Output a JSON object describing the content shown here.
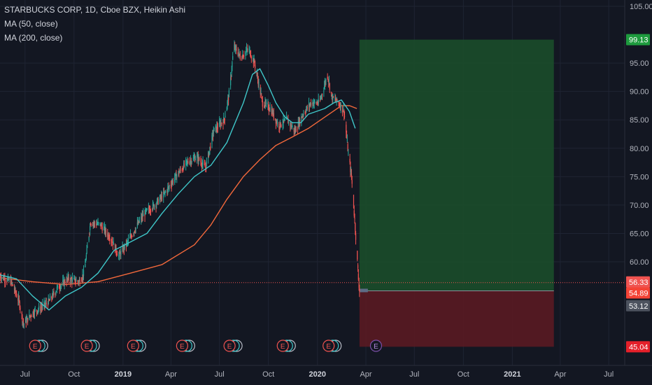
{
  "legend": {
    "symbol": "STARBUCKS CORP, 1D, Cboe BZX, Heikin Ashi",
    "ma50": "MA (50, close)",
    "ma200": "MA (200, close)"
  },
  "colors": {
    "background": "#131722",
    "grid": "#1f2433",
    "up": "#26a69a",
    "down": "#ef5350",
    "ma50": "#3fc7c9",
    "ma200": "#f2683b",
    "profit_zone": "#1b4d2a",
    "loss_zone": "#5a1a22",
    "target_tag": "#1e9b3e",
    "stop_tag": "#e5202a",
    "price_tag": "#ef5350",
    "entry_tag": "#f44336",
    "current_tag": "#4c525e"
  },
  "chart_data": {
    "type": "candlestick",
    "x_start": "2018-05-15",
    "x_end": "2021-07-31",
    "x_ticks": [
      {
        "label": "Jul",
        "date": "2018-07-01",
        "bold": false
      },
      {
        "label": "Oct",
        "date": "2018-10-01",
        "bold": false
      },
      {
        "label": "2019",
        "date": "2019-01-01",
        "bold": true
      },
      {
        "label": "Apr",
        "date": "2019-04-01",
        "bold": false
      },
      {
        "label": "Jul",
        "date": "2019-07-01",
        "bold": false
      },
      {
        "label": "Oct",
        "date": "2019-10-01",
        "bold": false
      },
      {
        "label": "2020",
        "date": "2020-01-01",
        "bold": true
      },
      {
        "label": "Apr",
        "date": "2020-04-01",
        "bold": false
      },
      {
        "label": "Jul",
        "date": "2020-07-01",
        "bold": false
      },
      {
        "label": "Oct",
        "date": "2020-10-01",
        "bold": false
      },
      {
        "label": "2021",
        "date": "2021-01-01",
        "bold": true
      },
      {
        "label": "Apr",
        "date": "2021-04-01",
        "bold": false
      },
      {
        "label": "Jul",
        "date": "2021-07-01",
        "bold": false
      }
    ],
    "y_ticks": [
      "105.00",
      "95.00",
      "90.00",
      "85.00",
      "80.00",
      "75.00",
      "70.00",
      "65.00",
      "60.00"
    ],
    "ylim": [
      41,
      106
    ],
    "price_path": [
      [
        "2018-05-15",
        57.5
      ],
      [
        "2018-06-05",
        56.5
      ],
      [
        "2018-06-20",
        53.0
      ],
      [
        "2018-06-28",
        49.0
      ],
      [
        "2018-07-15",
        51.0
      ],
      [
        "2018-08-01",
        52.0
      ],
      [
        "2018-08-15",
        53.0
      ],
      [
        "2018-09-01",
        55.5
      ],
      [
        "2018-09-20",
        57.0
      ],
      [
        "2018-10-10",
        56.5
      ],
      [
        "2018-10-20",
        58.0
      ],
      [
        "2018-11-01",
        67.0
      ],
      [
        "2018-11-20",
        66.5
      ],
      [
        "2018-12-10",
        64.0
      ],
      [
        "2018-12-24",
        61.0
      ],
      [
        "2019-01-10",
        63.5
      ],
      [
        "2019-01-25",
        66.0
      ],
      [
        "2019-02-10",
        68.5
      ],
      [
        "2019-03-01",
        70.0
      ],
      [
        "2019-03-20",
        72.0
      ],
      [
        "2019-04-10",
        75.0
      ],
      [
        "2019-05-01",
        77.5
      ],
      [
        "2019-05-20",
        78.5
      ],
      [
        "2019-06-05",
        76.5
      ],
      [
        "2019-06-20",
        83.0
      ],
      [
        "2019-07-10",
        85.0
      ],
      [
        "2019-07-20",
        90.0
      ],
      [
        "2019-07-28",
        98.0
      ],
      [
        "2019-08-10",
        96.0
      ],
      [
        "2019-08-25",
        97.5
      ],
      [
        "2019-09-05",
        95.0
      ],
      [
        "2019-09-20",
        88.0
      ],
      [
        "2019-10-05",
        87.0
      ],
      [
        "2019-10-20",
        84.0
      ],
      [
        "2019-11-05",
        85.0
      ],
      [
        "2019-11-20",
        83.0
      ],
      [
        "2019-12-05",
        86.0
      ],
      [
        "2019-12-20",
        88.0
      ],
      [
        "2020-01-05",
        88.0
      ],
      [
        "2020-01-20",
        93.0
      ],
      [
        "2020-01-28",
        89.0
      ],
      [
        "2020-02-10",
        88.0
      ],
      [
        "2020-02-20",
        86.5
      ],
      [
        "2020-02-28",
        79.0
      ],
      [
        "2020-03-05",
        75.0
      ],
      [
        "2020-03-12",
        66.0
      ],
      [
        "2020-03-18",
        57.0
      ],
      [
        "2020-03-20",
        55.0
      ]
    ],
    "ma50_path": [
      [
        "2018-05-15",
        57.7
      ],
      [
        "2018-06-15",
        57.0
      ],
      [
        "2018-07-15",
        54.0
      ],
      [
        "2018-08-15",
        51.5
      ],
      [
        "2018-09-15",
        54.0
      ],
      [
        "2018-10-15",
        55.5
      ],
      [
        "2018-11-15",
        58.0
      ],
      [
        "2018-12-15",
        62.0
      ],
      [
        "2019-01-15",
        63.5
      ],
      [
        "2019-02-15",
        65.0
      ],
      [
        "2019-03-15",
        68.5
      ],
      [
        "2019-04-15",
        72.0
      ],
      [
        "2019-05-15",
        75.0
      ],
      [
        "2019-06-15",
        77.0
      ],
      [
        "2019-07-15",
        81.0
      ],
      [
        "2019-08-15",
        88.0
      ],
      [
        "2019-09-01",
        93.0
      ],
      [
        "2019-09-15",
        94.0
      ],
      [
        "2019-10-01",
        91.0
      ],
      [
        "2019-10-15",
        88.0
      ],
      [
        "2019-11-01",
        85.5
      ],
      [
        "2019-11-15",
        84.5
      ],
      [
        "2019-12-01",
        84.5
      ],
      [
        "2019-12-15",
        86.0
      ],
      [
        "2020-01-15",
        87.0
      ],
      [
        "2020-02-01",
        88.0
      ],
      [
        "2020-02-15",
        88.5
      ],
      [
        "2020-03-01",
        86.5
      ],
      [
        "2020-03-12",
        83.5
      ]
    ],
    "ma200_path": [
      [
        "2018-05-15",
        57.2
      ],
      [
        "2018-07-15",
        56.5
      ],
      [
        "2018-09-15",
        56.0
      ],
      [
        "2018-11-15",
        56.5
      ],
      [
        "2019-01-15",
        58.0
      ],
      [
        "2019-03-15",
        59.5
      ],
      [
        "2019-05-15",
        63.0
      ],
      [
        "2019-06-15",
        66.5
      ],
      [
        "2019-07-15",
        71.0
      ],
      [
        "2019-08-15",
        75.0
      ],
      [
        "2019-09-15",
        78.0
      ],
      [
        "2019-10-15",
        80.5
      ],
      [
        "2019-11-15",
        82.0
      ],
      [
        "2019-12-15",
        83.5
      ],
      [
        "2020-01-15",
        85.5
      ],
      [
        "2020-02-15",
        87.5
      ],
      [
        "2020-03-01",
        87.5
      ],
      [
        "2020-03-15",
        87.0
      ]
    ],
    "position": {
      "start": "2020-03-20",
      "end": "2021-03-20",
      "entry": 54.89,
      "target": 99.13,
      "stop": 45.04
    },
    "price_line": 56.33,
    "price_labels": {
      "target": "99.13",
      "price": "56.33",
      "entry": "54.89",
      "current": "53.12",
      "stop": "45.04"
    },
    "earnings_markers": [
      {
        "date": "2018-07-20",
        "past": true
      },
      {
        "date": "2018-10-25",
        "past": true
      },
      {
        "date": "2019-01-20",
        "past": true
      },
      {
        "date": "2019-04-22",
        "past": true
      },
      {
        "date": "2019-07-20",
        "past": true
      },
      {
        "date": "2019-10-28",
        "past": true
      },
      {
        "date": "2020-01-22",
        "past": true
      },
      {
        "date": "2020-04-20",
        "past": false
      }
    ],
    "earnings_label": "E"
  }
}
